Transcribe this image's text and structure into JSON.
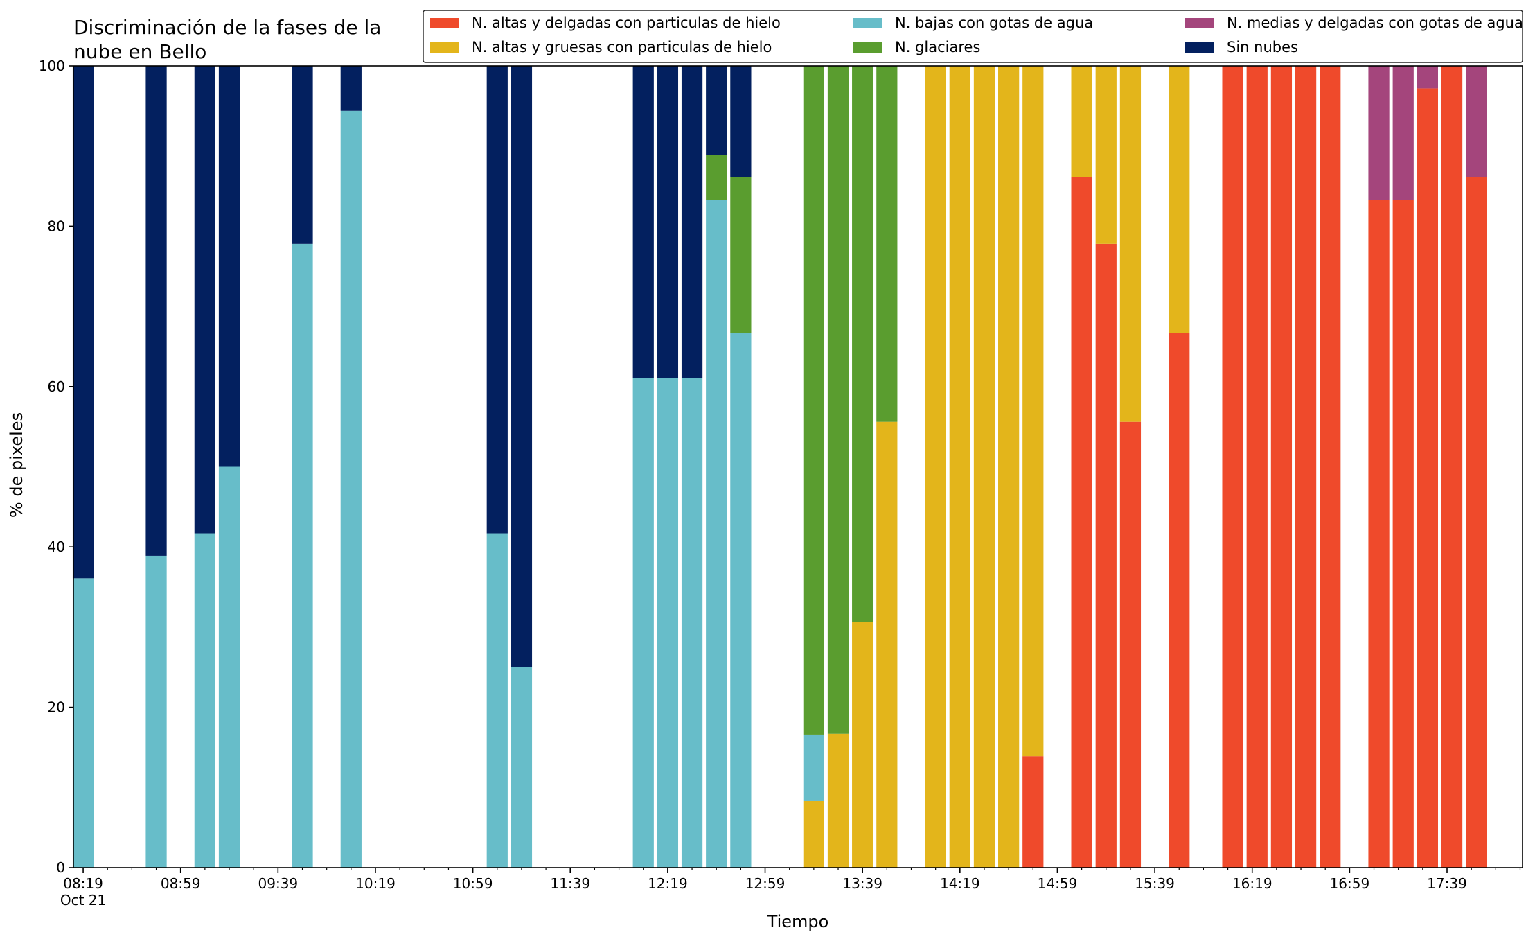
{
  "chart_data": {
    "type": "bar",
    "stacked": true,
    "title": "Discriminación de la fases de la nube en Bello",
    "title_lines": [
      "Discriminación de la fases de la",
      "nube en Bello"
    ],
    "xlabel": "Tiempo",
    "ylabel": "% de pixeles",
    "ylim": [
      0,
      100
    ],
    "yticks": [
      0,
      20,
      40,
      60,
      80,
      100
    ],
    "x_unit": "minutes",
    "xlim": [
      495,
      1090
    ],
    "xticks": [
      {
        "t": 499,
        "label": "08:19",
        "sublabel": "Oct 21"
      },
      {
        "t": 539,
        "label": "08:59"
      },
      {
        "t": 579,
        "label": "09:39"
      },
      {
        "t": 619,
        "label": "10:19"
      },
      {
        "t": 659,
        "label": "10:59"
      },
      {
        "t": 699,
        "label": "11:39"
      },
      {
        "t": 739,
        "label": "12:19"
      },
      {
        "t": 779,
        "label": "12:59"
      },
      {
        "t": 819,
        "label": "13:39"
      },
      {
        "t": 859,
        "label": "14:19"
      },
      {
        "t": 899,
        "label": "14:59"
      },
      {
        "t": 939,
        "label": "15:39"
      },
      {
        "t": 979,
        "label": "16:19"
      },
      {
        "t": 1019,
        "label": "16:59"
      },
      {
        "t": 1059,
        "label": "17:39"
      }
    ],
    "legend": {
      "placement": "top-right",
      "columns": 3
    },
    "grid": false,
    "series": [
      {
        "key": "ahi",
        "name": "N. altas y delgadas con particulas de hielo",
        "color": "#ef4a2b"
      },
      {
        "key": "agi",
        "name": "N. altas y gruesas con particulas de hielo",
        "color": "#e3b51b"
      },
      {
        "key": "bga",
        "name": "N. bajas con gotas de agua",
        "color": "#67bdc9"
      },
      {
        "key": "gla",
        "name": "N. glaciares",
        "color": "#5a9d2f"
      },
      {
        "key": "mda",
        "name": "N. medias y delgadas con gotas de agua",
        "color": "#a4457c"
      },
      {
        "key": "sin",
        "name": "Sin nubes",
        "color": "#03205f"
      }
    ],
    "stack_order": [
      "ahi",
      "agi",
      "bga",
      "gla",
      "mda",
      "sin"
    ],
    "legend_order": [
      "ahi",
      "agi",
      "bga",
      "gla",
      "mda",
      "sin"
    ],
    "bars": [
      {
        "t": 499,
        "bga": 36.1,
        "sin": 63.9
      },
      {
        "t": 529,
        "bga": 38.9,
        "sin": 61.1
      },
      {
        "t": 549,
        "bga": 41.7,
        "sin": 58.3
      },
      {
        "t": 559,
        "bga": 50.0,
        "sin": 50.0
      },
      {
        "t": 589,
        "bga": 77.8,
        "sin": 22.2
      },
      {
        "t": 609,
        "bga": 94.4,
        "sin": 5.6
      },
      {
        "t": 669,
        "bga": 41.7,
        "sin": 58.3
      },
      {
        "t": 679,
        "bga": 25.0,
        "sin": 75.0
      },
      {
        "t": 729,
        "bga": 61.1,
        "sin": 38.9
      },
      {
        "t": 739,
        "bga": 61.1,
        "sin": 38.9
      },
      {
        "t": 749,
        "bga": 61.1,
        "sin": 38.9
      },
      {
        "t": 759,
        "bga": 83.3,
        "gla": 5.6,
        "sin": 11.1
      },
      {
        "t": 769,
        "bga": 66.7,
        "gla": 19.4,
        "sin": 13.9
      },
      {
        "t": 799,
        "agi": 8.3,
        "bga": 8.3,
        "gla": 83.4
      },
      {
        "t": 809,
        "agi": 16.7,
        "gla": 83.3
      },
      {
        "t": 819,
        "agi": 30.6,
        "gla": 69.4
      },
      {
        "t": 829,
        "agi": 55.6,
        "gla": 44.4
      },
      {
        "t": 849,
        "agi": 100
      },
      {
        "t": 859,
        "agi": 100
      },
      {
        "t": 869,
        "agi": 100
      },
      {
        "t": 879,
        "agi": 100
      },
      {
        "t": 889,
        "ahi": 13.9,
        "agi": 86.1
      },
      {
        "t": 909,
        "ahi": 86.1,
        "agi": 13.9
      },
      {
        "t": 919,
        "ahi": 77.8,
        "agi": 22.2
      },
      {
        "t": 929,
        "ahi": 55.6,
        "agi": 44.4
      },
      {
        "t": 949,
        "ahi": 66.7,
        "agi": 33.3
      },
      {
        "t": 971,
        "ahi": 100
      },
      {
        "t": 981,
        "ahi": 100
      },
      {
        "t": 991,
        "ahi": 100
      },
      {
        "t": 1001,
        "ahi": 100
      },
      {
        "t": 1011,
        "ahi": 100
      },
      {
        "t": 1031,
        "ahi": 83.3,
        "mda": 16.7
      },
      {
        "t": 1041,
        "ahi": 83.3,
        "mda": 16.7
      },
      {
        "t": 1051,
        "ahi": 97.2,
        "mda": 2.8
      },
      {
        "t": 1061,
        "ahi": 100
      },
      {
        "t": 1071,
        "ahi": 86.1,
        "mda": 13.9
      }
    ]
  }
}
